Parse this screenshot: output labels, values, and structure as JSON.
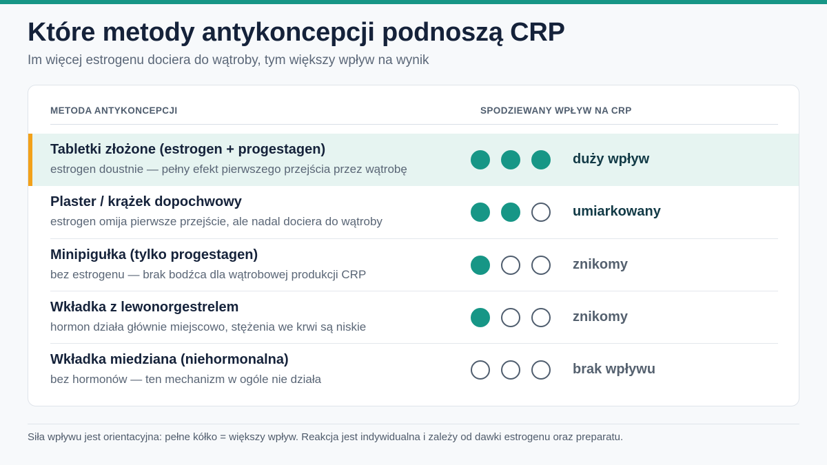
{
  "header": {
    "title": "Które metody antykoncepcji podnoszą CRP",
    "subtitle": "Im więcej estrogenu dociera do wątroby, tym większy wpływ na wynik"
  },
  "table": {
    "columns": {
      "method": "METODA ANTYKONCEPCJI",
      "impact": "SPODZIEWANY WPŁYW NA CRP"
    },
    "rows": [
      {
        "name": "Tabletki złożone (estrogen + progestagen)",
        "description": "estrogen doustnie — pełny efekt pierwszego przejścia przez wątrobę",
        "filled_dots": 3,
        "max_dots": 3,
        "level": "duży wpływ",
        "highlighted": true
      },
      {
        "name": "Plaster / krążek dopochwowy",
        "description": "estrogen omija pierwsze przejście, ale nadal dociera do wątroby",
        "filled_dots": 2,
        "max_dots": 3,
        "level": "umiarkowany",
        "highlighted": false
      },
      {
        "name": "Minipigułka (tylko progestagen)",
        "description": "bez estrogenu — brak bodźca dla wątrobowej produkcji CRP",
        "filled_dots": 1,
        "max_dots": 3,
        "level": "znikomy",
        "highlighted": false
      },
      {
        "name": "Wkładka z lewonorgestrelem",
        "description": "hormon działa głównie miejscowo, stężenia we krwi są niskie",
        "filled_dots": 1,
        "max_dots": 3,
        "level": "znikomy",
        "highlighted": false
      },
      {
        "name": "Wkładka miedziana (niehormonalna)",
        "description": "bez hormonów — ten mechanizm w ogóle nie działa",
        "filled_dots": 0,
        "max_dots": 3,
        "level": "brak wpływu",
        "highlighted": false
      }
    ]
  },
  "footnote": "Siła wpływu jest orientacyjna: pełne kółko = większy wpływ. Reakcja jest indywidualna i zależy od dawki estrogenu oraz preparatu.",
  "colors": {
    "accent": "#179686",
    "highlight_bar": "#f2a11a",
    "highlight_row": "#e6f4f1"
  }
}
